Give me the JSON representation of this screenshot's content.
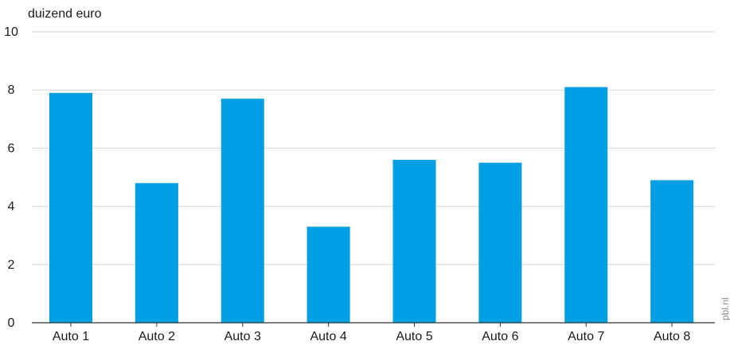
{
  "chart_data": {
    "type": "bar",
    "ylabel": "duizend euro",
    "categories": [
      "Auto 1",
      "Auto 2",
      "Auto 3",
      "Auto 4",
      "Auto 5",
      "Auto 6",
      "Auto 7",
      "Auto 8"
    ],
    "values": [
      7.9,
      4.8,
      7.7,
      3.3,
      5.6,
      5.5,
      8.1,
      4.9
    ],
    "ylim": [
      0,
      10
    ],
    "yticks": [
      0,
      2,
      4,
      6,
      8,
      10
    ],
    "grid": true,
    "bar_color": "#009FE3",
    "grid_color": "#d4d4d4",
    "axis_color": "#333333"
  },
  "credit": "pbl.nl"
}
